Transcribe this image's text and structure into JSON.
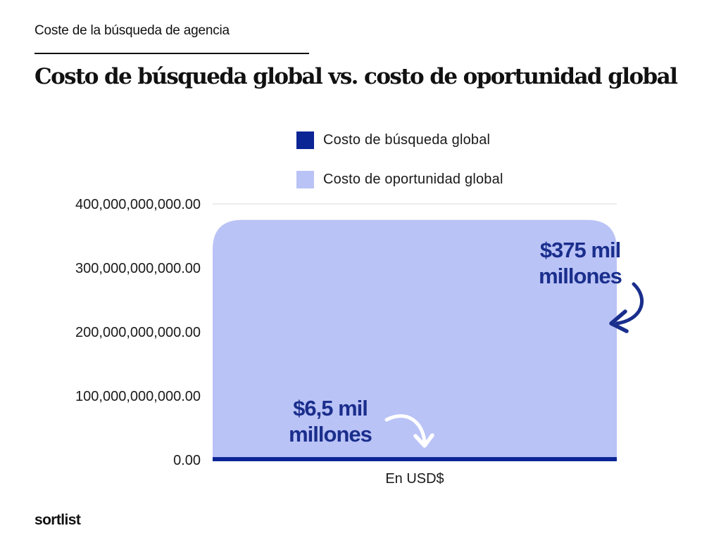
{
  "header": {
    "supertitle": "Coste de la búsqueda de agencia"
  },
  "brand": "sortlist",
  "colors": {
    "search_cost": "#0c2595",
    "opportunity_cost": "#bac3f6",
    "annotation": "#1a2e8c",
    "grid": "#d9d9d9"
  },
  "chart_data": {
    "type": "area",
    "title": "Costo de búsqueda global vs. costo de oportunidad global",
    "xlabel": "En USD$",
    "ylabel": "",
    "ylim": [
      0,
      400000000000
    ],
    "yticks": [
      "0.00",
      "100,000,000,000.00",
      "200,000,000,000.00",
      "300,000,000,000.00",
      "400,000,000,000.00"
    ],
    "grid": "top line only",
    "legend_position": "top-center",
    "series": [
      {
        "name": "Costo de búsqueda global",
        "value": 6500000000,
        "color": "#0c2595"
      },
      {
        "name": "Costo de oportunidad global",
        "value": 375000000000,
        "color": "#bac3f6"
      }
    ],
    "annotations": [
      {
        "line1": "$375 mil",
        "line2": "millones",
        "series": "Costo de oportunidad global"
      },
      {
        "line1": "$6,5 mil",
        "line2": "millones",
        "series": "Costo de búsqueda global"
      }
    ]
  }
}
